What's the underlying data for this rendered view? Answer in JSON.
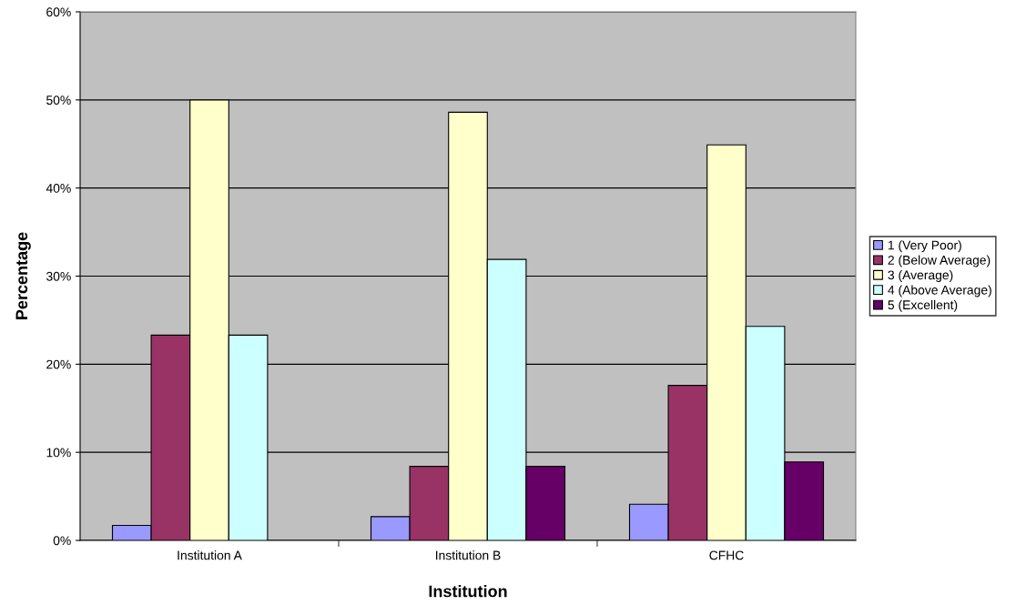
{
  "chart_data": {
    "type": "bar",
    "xlabel": "Institution",
    "ylabel": "Percentage",
    "categories": [
      "Institution A",
      "Institution B",
      "CFHC"
    ],
    "series": [
      {
        "name": "1 (Very Poor)",
        "color": "#9999ff",
        "values": [
          1.7,
          2.7,
          4.1
        ]
      },
      {
        "name": "2 (Below Average)",
        "color": "#993366",
        "values": [
          23.3,
          8.4,
          17.6
        ]
      },
      {
        "name": "3 (Average)",
        "color": "#ffffcc",
        "values": [
          50,
          48.6,
          44.9
        ]
      },
      {
        "name": "4 (Above Average)",
        "color": "#ccffff",
        "values": [
          23.3,
          31.9,
          24.3
        ]
      },
      {
        "name": "5 (Excellent)",
        "color": "#660066",
        "values": [
          null,
          8.4,
          8.9
        ]
      }
    ],
    "ylim": [
      0,
      60
    ],
    "yticks": [
      {
        "value": 0,
        "label": "0%"
      },
      {
        "value": 10,
        "label": "10%"
      },
      {
        "value": 20,
        "label": "20%"
      },
      {
        "value": 30,
        "label": "30%"
      },
      {
        "value": 40,
        "label": "40%"
      },
      {
        "value": 50,
        "label": "50%"
      },
      {
        "value": 60,
        "label": "60%"
      }
    ],
    "grid": "y",
    "legend": "right"
  }
}
